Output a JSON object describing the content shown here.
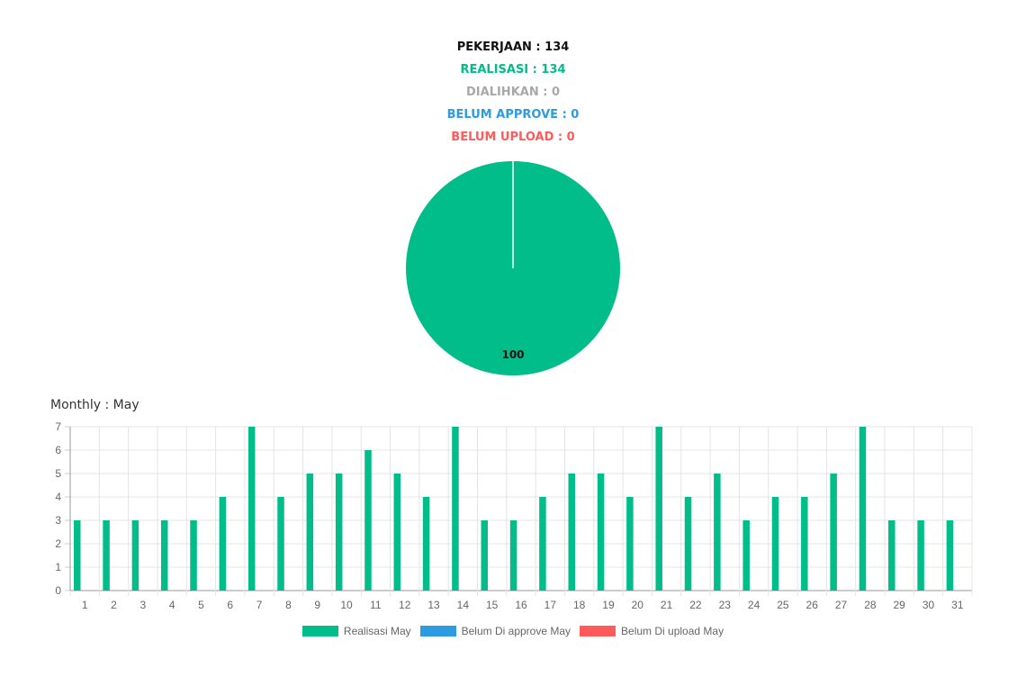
{
  "summary": {
    "total": "PEKERJAAN : 134",
    "realisasi": "REALISASI : 134",
    "dialihkan": "DIALIHKAN : 0",
    "belum_approve": "BELUM APPROVE : 0",
    "belum_upload": "BELUM UPLOAD : 0"
  },
  "colors": {
    "realisasi": "#00bd8a",
    "dialihkan": "#a8a8a8",
    "belum_approve": "#2d9be0",
    "belum_upload": "#ff5b5b"
  },
  "chart_data": [
    {
      "type": "pie",
      "slices": [
        {
          "value": 100,
          "label": "100",
          "color": "#00bd8a"
        }
      ]
    },
    {
      "type": "bar",
      "title": "Monthly : May",
      "categories": [
        "1",
        "2",
        "3",
        "4",
        "5",
        "6",
        "7",
        "8",
        "9",
        "10",
        "11",
        "12",
        "13",
        "14",
        "15",
        "16",
        "17",
        "18",
        "19",
        "20",
        "21",
        "22",
        "23",
        "24",
        "25",
        "26",
        "27",
        "28",
        "29",
        "30",
        "31"
      ],
      "series": [
        {
          "name": "Realisasi May",
          "color": "#00bd8a",
          "values": [
            3,
            3,
            3,
            3,
            3,
            4,
            7,
            4,
            5,
            5,
            6,
            5,
            4,
            7,
            3,
            3,
            4,
            5,
            5,
            4,
            7,
            4,
            5,
            3,
            4,
            4,
            5,
            7,
            3,
            3,
            3
          ]
        },
        {
          "name": "Belum Di approve May",
          "color": "#2d9be0",
          "values": [
            0,
            0,
            0,
            0,
            0,
            0,
            0,
            0,
            0,
            0,
            0,
            0,
            0,
            0,
            0,
            0,
            0,
            0,
            0,
            0,
            0,
            0,
            0,
            0,
            0,
            0,
            0,
            0,
            0,
            0,
            0
          ]
        },
        {
          "name": "Belum Di upload May",
          "color": "#ff5b5b",
          "values": [
            0,
            0,
            0,
            0,
            0,
            0,
            0,
            0,
            0,
            0,
            0,
            0,
            0,
            0,
            0,
            0,
            0,
            0,
            0,
            0,
            0,
            0,
            0,
            0,
            0,
            0,
            0,
            0,
            0,
            0,
            0
          ]
        }
      ],
      "ylim": [
        0,
        7
      ],
      "yticks": [
        "0",
        "1",
        "2",
        "3",
        "4",
        "5",
        "6",
        "7"
      ],
      "grid": true,
      "legend": "bottom"
    }
  ]
}
